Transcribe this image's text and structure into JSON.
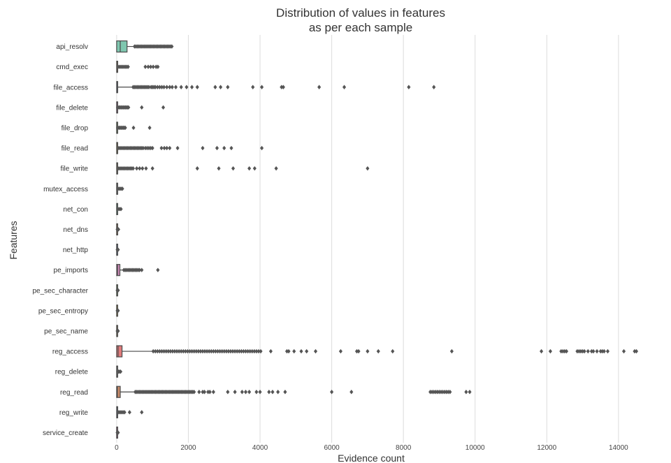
{
  "chart_data": {
    "type": "boxplot",
    "orientation": "horizontal",
    "title": [
      "Distribution of values in features",
      "as per each sample"
    ],
    "xlabel": "Evidence count",
    "ylabel": "Features",
    "xlim": [
      -700,
      14900
    ],
    "xticks": [
      0,
      2000,
      4000,
      6000,
      8000,
      10000,
      12000,
      14000
    ],
    "grid": "vertical",
    "categories": [
      "api_resolv",
      "cmd_exec",
      "file_access",
      "file_delete",
      "file_drop",
      "file_read",
      "file_write",
      "mutex_access",
      "net_con",
      "net_dns",
      "net_http",
      "pe_imports",
      "pe_sec_character",
      "pe_sec_entropy",
      "pe_sec_name",
      "reg_access",
      "reg_delete",
      "reg_read",
      "reg_write",
      "service_create"
    ],
    "series": [
      {
        "q1": 0,
        "median": 100,
        "q3": 290,
        "whisker_low": 0,
        "whisker_high": 500,
        "color": "#7fc7af",
        "outliers": [
          500,
          540,
          580,
          620,
          660,
          700,
          740,
          780,
          820,
          860,
          900,
          940,
          980,
          1020,
          1060,
          1100,
          1140,
          1180,
          1220,
          1260,
          1300,
          1340,
          1380,
          1420,
          1460,
          1500,
          1540
        ]
      },
      {
        "q1": 0,
        "median": 5,
        "q3": 15,
        "whisker_low": 0,
        "whisker_high": 30,
        "color": "#d4a373",
        "outliers": [
          40,
          80,
          120,
          160,
          200,
          240,
          280,
          320,
          800,
          880,
          950,
          1020,
          1100,
          1150
        ]
      },
      {
        "q1": 0,
        "median": 5,
        "q3": 20,
        "whisker_low": 0,
        "whisker_high": 440,
        "color": "#8fa8d8",
        "outliers": [
          460,
          500,
          540,
          580,
          620,
          660,
          700,
          740,
          780,
          820,
          860,
          900,
          960,
          1000,
          1040,
          1080,
          1140,
          1200,
          1260,
          1320,
          1400,
          1480,
          1550,
          1650,
          1800,
          1950,
          2100,
          2250,
          2750,
          2900,
          3100,
          3800,
          4050,
          4600,
          4650,
          5650,
          6350,
          8150,
          8850
        ]
      },
      {
        "q1": 0,
        "median": 2,
        "q3": 6,
        "whisker_low": 0,
        "whisker_high": 12,
        "color": "#d88fc0",
        "outliers": [
          30,
          60,
          90,
          120,
          150,
          180,
          210,
          240,
          270,
          300,
          330,
          700,
          1300
        ]
      },
      {
        "q1": 0,
        "median": 2,
        "q3": 6,
        "whisker_low": 0,
        "whisker_high": 12,
        "color": "#a8d08d",
        "outliers": [
          30,
          60,
          90,
          120,
          150,
          180,
          210,
          240,
          470,
          920
        ]
      },
      {
        "q1": 0,
        "median": 5,
        "q3": 20,
        "whisker_low": 0,
        "whisker_high": 40,
        "color": "#f2d36b",
        "outliers": [
          60,
          100,
          140,
          180,
          220,
          260,
          300,
          340,
          380,
          420,
          460,
          500,
          540,
          580,
          620,
          660,
          700,
          740,
          800,
          850,
          900,
          950,
          1000,
          1250,
          1330,
          1400,
          1480,
          1700,
          2400,
          2800,
          3000,
          3200,
          4050
        ]
      },
      {
        "q1": 0,
        "median": 5,
        "q3": 20,
        "whisker_low": 0,
        "whisker_high": 40,
        "color": "#e8c9a0",
        "outliers": [
          60,
          100,
          140,
          180,
          220,
          260,
          300,
          340,
          380,
          420,
          460,
          560,
          640,
          720,
          820,
          1000,
          2250,
          2850,
          3250,
          3700,
          3850,
          4450,
          7000
        ]
      },
      {
        "q1": 0,
        "median": 2,
        "q3": 6,
        "whisker_low": 0,
        "whisker_high": 12,
        "color": "#b0b0b0",
        "outliers": [
          40,
          80,
          120,
          160
        ]
      },
      {
        "q1": 0,
        "median": 2,
        "q3": 6,
        "whisker_low": 0,
        "whisker_high": 12,
        "color": "#7fc7af",
        "outliers": [
          40,
          80,
          120
        ]
      },
      {
        "q1": 0,
        "median": 1,
        "q3": 3,
        "whisker_low": 0,
        "whisker_high": 6,
        "color": "#d4a373",
        "outliers": [
          20,
          50
        ]
      },
      {
        "q1": 0,
        "median": 1,
        "q3": 3,
        "whisker_low": 0,
        "whisker_high": 6,
        "color": "#8fa8d8",
        "outliers": [
          20,
          40
        ]
      },
      {
        "q1": 0,
        "median": 30,
        "q3": 90,
        "whisker_low": 0,
        "whisker_high": 180,
        "color": "#d88fc0",
        "outliers": [
          200,
          240,
          280,
          320,
          360,
          400,
          440,
          480,
          520,
          560,
          600,
          640,
          700,
          1150
        ]
      },
      {
        "q1": 0,
        "median": 2,
        "q3": 5,
        "whisker_low": 0,
        "whisker_high": 10,
        "color": "#a8d08d",
        "outliers": [
          20,
          40
        ]
      },
      {
        "q1": 0,
        "median": 2,
        "q3": 5,
        "whisker_low": 0,
        "whisker_high": 10,
        "color": "#f2d36b",
        "outliers": [
          20,
          40
        ]
      },
      {
        "q1": 0,
        "median": 2,
        "q3": 5,
        "whisker_low": 0,
        "whisker_high": 10,
        "color": "#e8c9a0",
        "outliers": [
          20,
          40
        ]
      },
      {
        "q1": 0,
        "median": 40,
        "q3": 150,
        "whisker_low": 0,
        "whisker_high": 1000,
        "color": "#e07b7b",
        "outliers": [
          1020,
          1080,
          1140,
          1200,
          1260,
          1320,
          1380,
          1440,
          1500,
          1560,
          1620,
          1680,
          1740,
          1800,
          1860,
          1920,
          1980,
          2040,
          2100,
          2160,
          2220,
          2280,
          2340,
          2400,
          2460,
          2520,
          2580,
          2640,
          2700,
          2760,
          2820,
          2880,
          2940,
          3000,
          3060,
          3120,
          3180,
          3240,
          3300,
          3360,
          3420,
          3480,
          3540,
          3600,
          3660,
          3720,
          3780,
          3840,
          3900,
          3960,
          4020,
          4300,
          4750,
          4800,
          4950,
          5150,
          5300,
          5550,
          6250,
          6700,
          6750,
          7000,
          7300,
          7700,
          9350,
          11850,
          12100,
          12400,
          12450,
          12500,
          12550,
          12850,
          12900,
          12950,
          13000,
          13050,
          13150,
          13250,
          13300,
          13400,
          13500,
          13550,
          13600,
          13700,
          14150,
          14450,
          14500
        ]
      },
      {
        "q1": 0,
        "median": 2,
        "q3": 8,
        "whisker_low": 0,
        "whisker_high": 20,
        "color": "#b0b0b0",
        "outliers": [
          50,
          80,
          110
        ]
      },
      {
        "q1": 0,
        "median": 20,
        "q3": 100,
        "whisker_low": 0,
        "whisker_high": 500,
        "color": "#c98b6a",
        "outliers": [
          520,
          560,
          600,
          640,
          680,
          720,
          760,
          800,
          840,
          880,
          920,
          960,
          1000,
          1040,
          1080,
          1120,
          1160,
          1200,
          1240,
          1280,
          1320,
          1360,
          1400,
          1440,
          1480,
          1520,
          1560,
          1600,
          1640,
          1680,
          1720,
          1760,
          1800,
          1840,
          1880,
          1920,
          1960,
          2000,
          2040,
          2080,
          2120,
          2160,
          2300,
          2400,
          2450,
          2550,
          2600,
          2700,
          3100,
          3300,
          3500,
          3600,
          3700,
          3900,
          4000,
          4250,
          4350,
          4500,
          4700,
          6000,
          6550,
          8750,
          8800,
          8850,
          8900,
          8950,
          9000,
          9050,
          9100,
          9150,
          9200,
          9250,
          9300,
          9750,
          9850
        ]
      },
      {
        "q1": 0,
        "median": 5,
        "q3": 20,
        "whisker_low": 0,
        "whisker_high": 40,
        "color": "#8fa8d8",
        "outliers": [
          60,
          100,
          140,
          180,
          220,
          360,
          700
        ]
      },
      {
        "q1": 0,
        "median": 1,
        "q3": 3,
        "whisker_low": 0,
        "whisker_high": 6,
        "color": "#d88fc0",
        "outliers": [
          20,
          40
        ]
      }
    ]
  }
}
